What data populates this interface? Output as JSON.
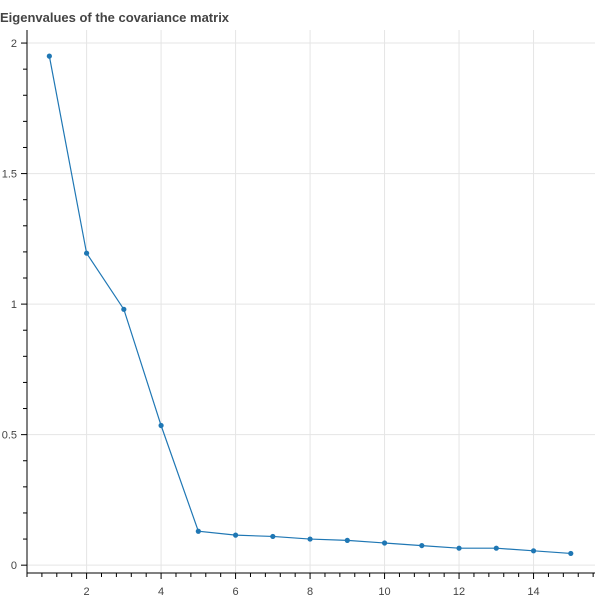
{
  "chart_data": {
    "type": "line",
    "title": "Eigenvalues of the covariance matrix",
    "xlabel": "",
    "ylabel": "",
    "xlim": [
      0.4,
      15.65
    ],
    "ylim": [
      -0.03,
      2.05
    ],
    "x_ticks_major": [
      2,
      4,
      6,
      8,
      10,
      12,
      14
    ],
    "x_tick_labels": [
      "2",
      "4",
      "6",
      "8",
      "10",
      "12",
      "14"
    ],
    "y_ticks_major": [
      0,
      0.5,
      1,
      1.5,
      2
    ],
    "y_tick_labels": [
      "0",
      "0.5",
      "1",
      "1.5",
      "2"
    ],
    "grid": true,
    "legend": "none",
    "series": [
      {
        "color": "#1f77b4",
        "x": [
          1,
          2,
          3,
          4,
          5,
          6,
          7,
          8,
          9,
          10,
          11,
          12,
          13,
          14,
          15
        ],
        "values": [
          1.95,
          1.195,
          0.98,
          0.535,
          0.13,
          0.115,
          0.11,
          0.1,
          0.095,
          0.085,
          0.075,
          0.065,
          0.065,
          0.055,
          0.045
        ]
      }
    ]
  }
}
